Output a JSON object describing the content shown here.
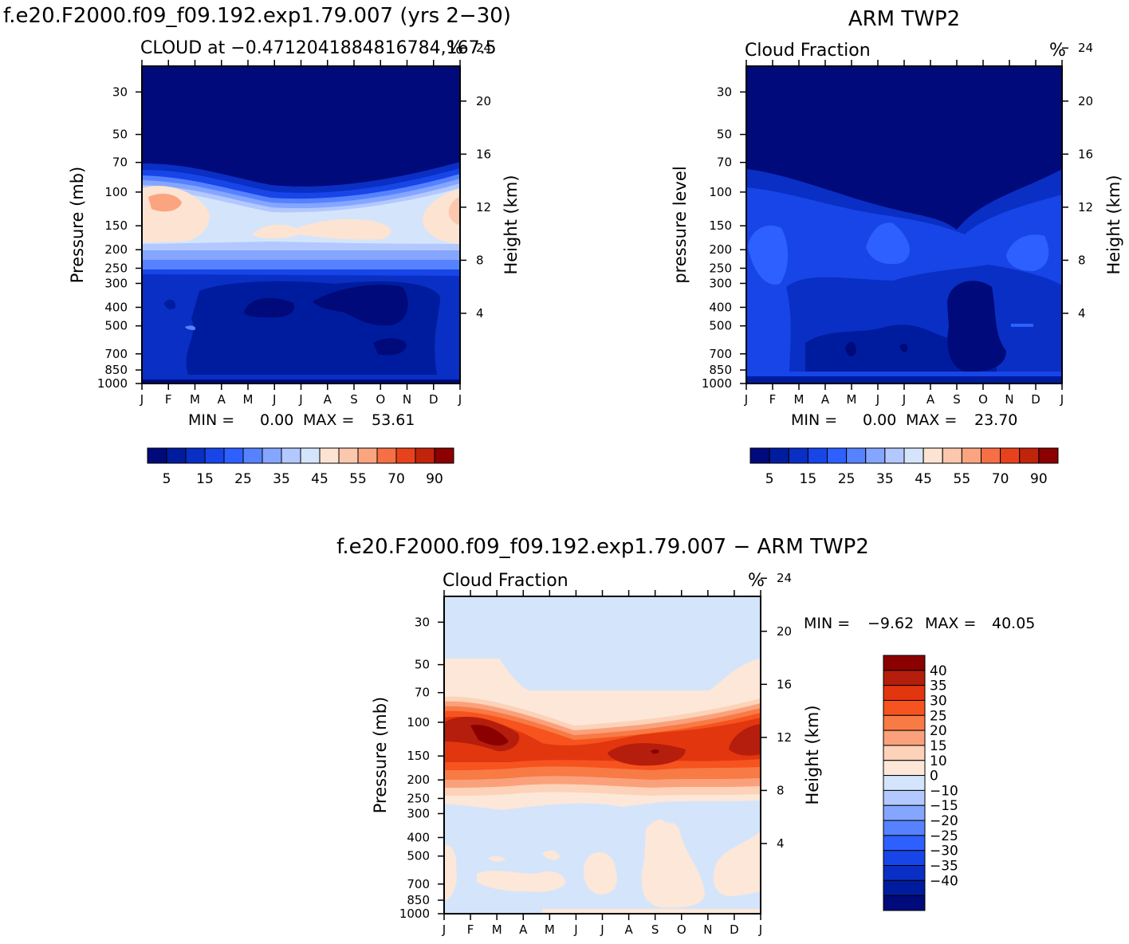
{
  "chart_data": [
    {
      "type": "heatmap",
      "title": "f.e20.F2000.f09_f09.192.exp1.79.007 (yrs 2−30)",
      "subtitle_left": "CLOUD at −0.4712041884816784,167.5",
      "subtitle_right": "%",
      "ylabel": "Pressure (mb)",
      "ylabel_right": "Height (km)",
      "months": [
        "J",
        "F",
        "M",
        "A",
        "M",
        "J",
        "J",
        "A",
        "S",
        "O",
        "N",
        "D",
        "J"
      ],
      "pressure_ticks": [
        "30",
        "50",
        "70",
        "100",
        "150",
        "200",
        "250",
        "300",
        "400",
        "500",
        "700",
        "850",
        "1000"
      ],
      "height_ticks": [
        "24",
        "20",
        "16",
        "12",
        "8",
        "4"
      ],
      "min_label": "MIN =",
      "min_value": "0.00",
      "max_label": "MAX =",
      "max_value": "53.61",
      "colorbar_labels": [
        "5",
        "15",
        "25",
        "35",
        "45",
        "55",
        "70",
        "90"
      ]
    },
    {
      "type": "heatmap",
      "title": "ARM TWP2",
      "subtitle_left": "Cloud Fraction",
      "subtitle_right": "%",
      "ylabel": "pressure level",
      "ylabel_right": "Height (km)",
      "months": [
        "J",
        "F",
        "M",
        "A",
        "M",
        "J",
        "J",
        "A",
        "S",
        "O",
        "N",
        "D",
        "J"
      ],
      "pressure_ticks": [
        "30",
        "50",
        "70",
        "100",
        "150",
        "200",
        "250",
        "300",
        "400",
        "500",
        "700",
        "850",
        "1000"
      ],
      "height_ticks": [
        "24",
        "20",
        "16",
        "12",
        "8",
        "4"
      ],
      "min_label": "MIN =",
      "min_value": "0.00",
      "max_label": "MAX =",
      "max_value": "23.70",
      "colorbar_labels": [
        "5",
        "15",
        "25",
        "35",
        "45",
        "55",
        "70",
        "90"
      ]
    },
    {
      "type": "heatmap",
      "title": "f.e20.F2000.f09_f09.192.exp1.79.007 − ARM TWP2",
      "subtitle_left": "Cloud Fraction",
      "subtitle_right": "%",
      "ylabel": "Pressure (mb)",
      "ylabel_right": "Height (km)",
      "months": [
        "J",
        "F",
        "M",
        "A",
        "M",
        "J",
        "J",
        "A",
        "S",
        "O",
        "N",
        "D",
        "J"
      ],
      "pressure_ticks": [
        "30",
        "50",
        "70",
        "100",
        "150",
        "200",
        "250",
        "300",
        "400",
        "500",
        "700",
        "850",
        "1000"
      ],
      "height_ticks": [
        "24",
        "20",
        "16",
        "12",
        "8",
        "4"
      ],
      "min_label": "MIN =",
      "min_value": "−9.62",
      "max_label": "MAX =",
      "max_value": "40.05",
      "colorbar_labels": [
        "40",
        "35",
        "30",
        "25",
        "20",
        "15",
        "10",
        "0",
        "−10",
        "−15",
        "−20",
        "−25",
        "−30",
        "−35",
        "−40"
      ]
    }
  ],
  "colors": {
    "seq": [
      "#000a7a",
      "#001c9e",
      "#0a2fc4",
      "#1745e8",
      "#2d60ff",
      "#5682ff",
      "#85a6ff",
      "#b3c8ff",
      "#d4e5fb",
      "#fde3d2",
      "#fcc8ad",
      "#fba580",
      "#f66f45",
      "#e8421c",
      "#c0240b",
      "#8b0000"
    ],
    "diff": [
      "#8b0000",
      "#b51d0c",
      "#e2360f",
      "#f6531e",
      "#f87a45",
      "#faa17c",
      "#fcd2b8",
      "#fde7d8",
      "#d4e5fb",
      "#b3c8ff",
      "#85a6ff",
      "#5682ff",
      "#2d60ff",
      "#1745e8",
      "#0a2fc4",
      "#001c9e",
      "#000a7a"
    ]
  }
}
